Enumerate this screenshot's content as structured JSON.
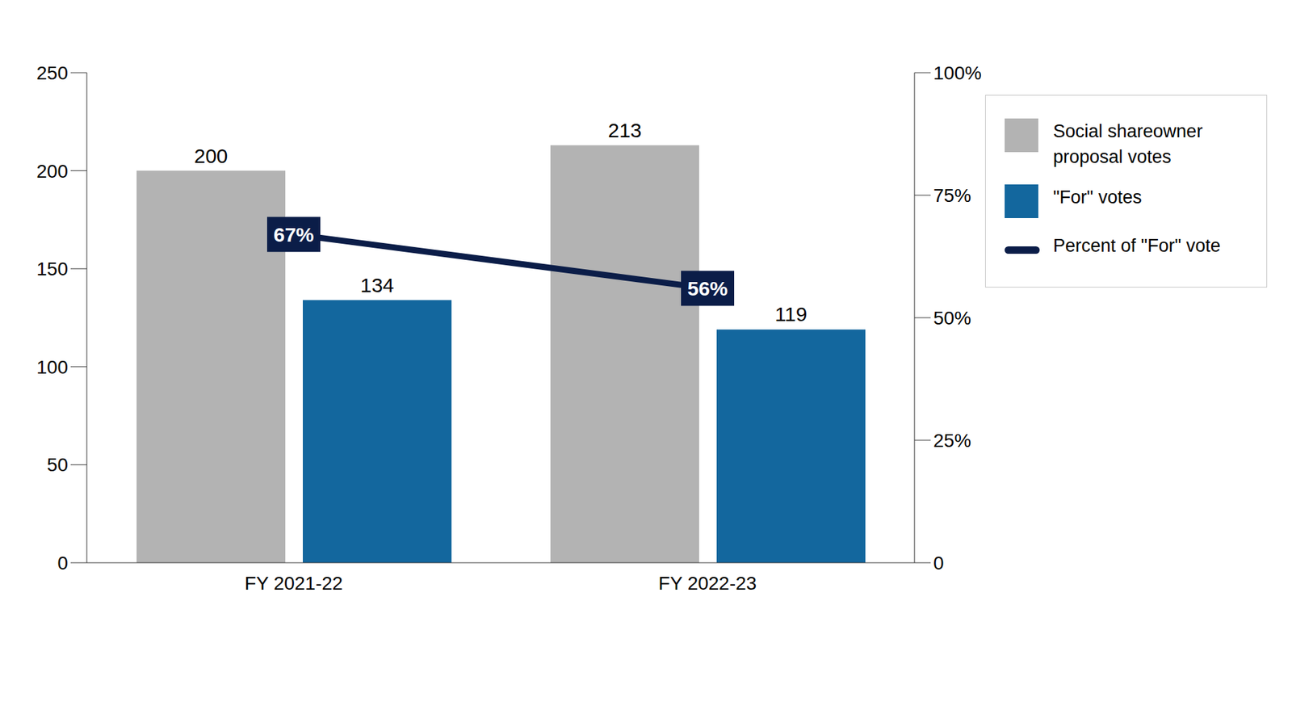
{
  "chart_data": {
    "type": "bar",
    "categories": [
      "FY 2021-22",
      "FY 2022-23"
    ],
    "series": [
      {
        "name": "Social shareowner proposal votes",
        "color": "#b3b3b3",
        "values": [
          200,
          213
        ]
      },
      {
        "name": "\"For\" votes",
        "color": "#13679e",
        "values": [
          134,
          119
        ]
      },
      {
        "name": "Percent of \"For\" vote",
        "type": "line",
        "axis": "y2",
        "color": "#0b1d48",
        "values": [
          67,
          56
        ],
        "value_labels": [
          "67%",
          "56%"
        ]
      }
    ],
    "ylim": [
      0,
      250
    ],
    "yticks": [
      0,
      50,
      100,
      150,
      200,
      250
    ],
    "y2lim": [
      0,
      100
    ],
    "y2ticks": [
      0,
      {
        "value": 25,
        "label": "25%"
      },
      {
        "value": 50,
        "label": "50%"
      },
      {
        "value": 75,
        "label": "75%"
      },
      {
        "value": 100,
        "label": "100%"
      }
    ],
    "data_labels": true,
    "legend": "right",
    "grid": false
  }
}
